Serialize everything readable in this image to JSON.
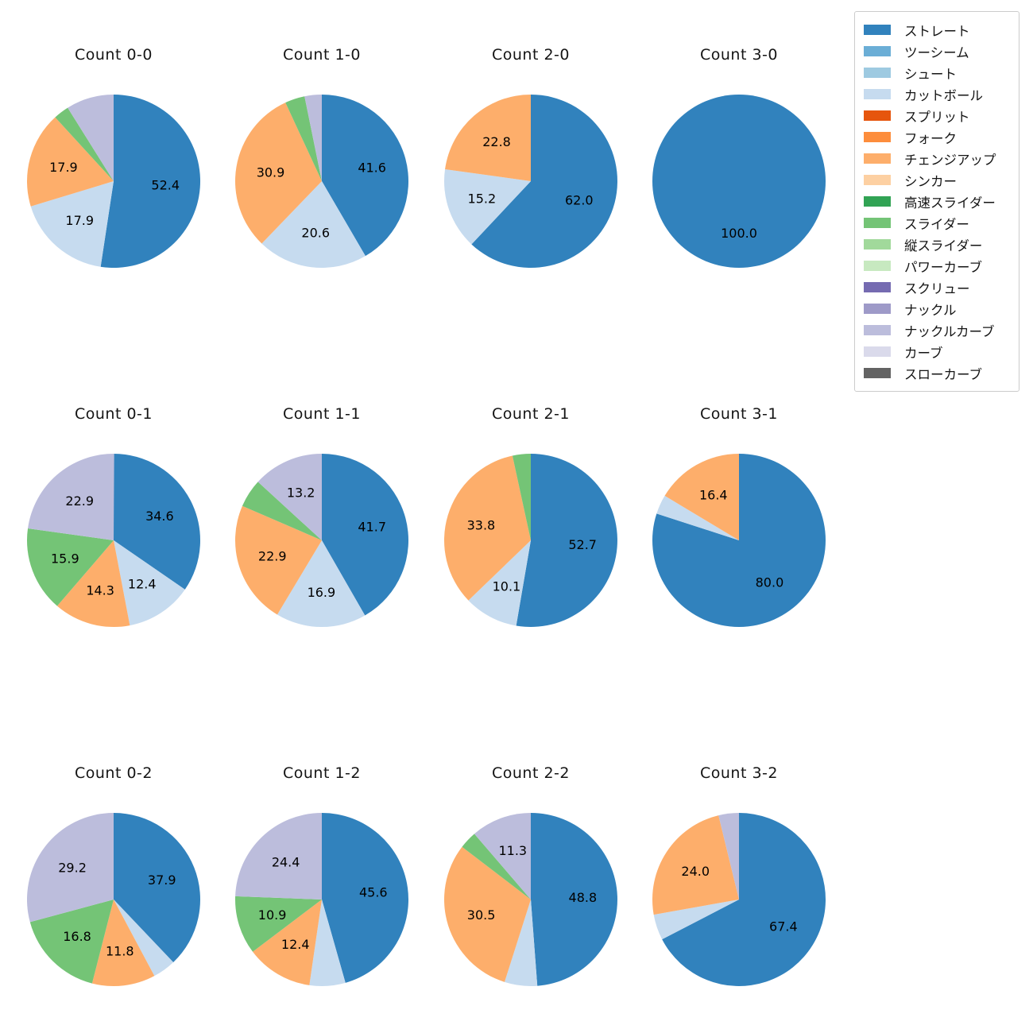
{
  "legend": {
    "items": [
      {
        "label": "ストレート",
        "color": "#3182bd"
      },
      {
        "label": "ツーシーム",
        "color": "#6baed6"
      },
      {
        "label": "シュート",
        "color": "#9ecae1"
      },
      {
        "label": "カットボール",
        "color": "#c6dbef"
      },
      {
        "label": "スプリット",
        "color": "#e6550d"
      },
      {
        "label": "フォーク",
        "color": "#fd8d3c"
      },
      {
        "label": "チェンジアップ",
        "color": "#fdae6b"
      },
      {
        "label": "シンカー",
        "color": "#fdd0a2"
      },
      {
        "label": "高速スライダー",
        "color": "#31a354"
      },
      {
        "label": "スライダー",
        "color": "#74c476"
      },
      {
        "label": "縦スライダー",
        "color": "#a1d99b"
      },
      {
        "label": "パワーカーブ",
        "color": "#c7e9c0"
      },
      {
        "label": "スクリュー",
        "color": "#756bb1"
      },
      {
        "label": "ナックル",
        "color": "#9e9ac8"
      },
      {
        "label": "ナックルカーブ",
        "color": "#bcbddc"
      },
      {
        "label": "カーブ",
        "color": "#dadaeb"
      },
      {
        "label": "スローカーブ",
        "color": "#636363"
      }
    ]
  },
  "chart_data": [
    {
      "type": "pie",
      "title": "Count 0-0",
      "start_angle": 90,
      "direction": "clockwise",
      "slices": [
        {
          "name": "ストレート",
          "value": 52.4,
          "pct_label": "52.4"
        },
        {
          "name": "カットボール",
          "value": 17.9,
          "pct_label": "17.9"
        },
        {
          "name": "チェンジアップ",
          "value": 17.9,
          "pct_label": "17.9"
        },
        {
          "name": "スライダー",
          "value": 2.9,
          "pct_label": ""
        },
        {
          "name": "ナックルカーブ",
          "value": 8.9,
          "pct_label": ""
        }
      ]
    },
    {
      "type": "pie",
      "title": "Count 1-0",
      "start_angle": 90,
      "direction": "clockwise",
      "slices": [
        {
          "name": "ストレート",
          "value": 41.6,
          "pct_label": "41.6"
        },
        {
          "name": "カットボール",
          "value": 20.6,
          "pct_label": "20.6"
        },
        {
          "name": "チェンジアップ",
          "value": 30.9,
          "pct_label": "30.9"
        },
        {
          "name": "スライダー",
          "value": 3.7,
          "pct_label": ""
        },
        {
          "name": "ナックルカーブ",
          "value": 3.2,
          "pct_label": ""
        }
      ]
    },
    {
      "type": "pie",
      "title": "Count 2-0",
      "start_angle": 90,
      "direction": "clockwise",
      "slices": [
        {
          "name": "ストレート",
          "value": 62.0,
          "pct_label": "62.0"
        },
        {
          "name": "カットボール",
          "value": 15.2,
          "pct_label": "15.2"
        },
        {
          "name": "チェンジアップ",
          "value": 22.8,
          "pct_label": "22.8"
        }
      ]
    },
    {
      "type": "pie",
      "title": "Count 3-0",
      "start_angle": 90,
      "direction": "clockwise",
      "slices": [
        {
          "name": "ストレート",
          "value": 100.0,
          "pct_label": "100.0"
        }
      ]
    },
    {
      "type": "pie",
      "title": "Count 0-1",
      "start_angle": 90,
      "direction": "clockwise",
      "slices": [
        {
          "name": "ストレート",
          "value": 34.6,
          "pct_label": "34.6"
        },
        {
          "name": "カットボール",
          "value": 12.4,
          "pct_label": "12.4"
        },
        {
          "name": "チェンジアップ",
          "value": 14.3,
          "pct_label": "14.3"
        },
        {
          "name": "スライダー",
          "value": 15.9,
          "pct_label": "15.9"
        },
        {
          "name": "ナックルカーブ",
          "value": 22.9,
          "pct_label": "22.9"
        }
      ]
    },
    {
      "type": "pie",
      "title": "Count 1-1",
      "start_angle": 90,
      "direction": "clockwise",
      "slices": [
        {
          "name": "ストレート",
          "value": 41.7,
          "pct_label": "41.7"
        },
        {
          "name": "カットボール",
          "value": 16.9,
          "pct_label": "16.9"
        },
        {
          "name": "チェンジアップ",
          "value": 22.9,
          "pct_label": "22.9"
        },
        {
          "name": "スライダー",
          "value": 5.3,
          "pct_label": ""
        },
        {
          "name": "ナックルカーブ",
          "value": 13.2,
          "pct_label": "13.2"
        }
      ]
    },
    {
      "type": "pie",
      "title": "Count 2-1",
      "start_angle": 90,
      "direction": "clockwise",
      "slices": [
        {
          "name": "ストレート",
          "value": 52.7,
          "pct_label": "52.7"
        },
        {
          "name": "カットボール",
          "value": 10.1,
          "pct_label": "10.1"
        },
        {
          "name": "チェンジアップ",
          "value": 33.8,
          "pct_label": "33.8"
        },
        {
          "name": "スライダー",
          "value": 3.4,
          "pct_label": ""
        }
      ]
    },
    {
      "type": "pie",
      "title": "Count 3-1",
      "start_angle": 90,
      "direction": "clockwise",
      "slices": [
        {
          "name": "ストレート",
          "value": 80.0,
          "pct_label": "80.0"
        },
        {
          "name": "カットボール",
          "value": 3.6,
          "pct_label": ""
        },
        {
          "name": "チェンジアップ",
          "value": 16.4,
          "pct_label": "16.4"
        }
      ]
    },
    {
      "type": "pie",
      "title": "Count 0-2",
      "start_angle": 90,
      "direction": "clockwise",
      "slices": [
        {
          "name": "ストレート",
          "value": 37.9,
          "pct_label": "37.9"
        },
        {
          "name": "カットボール",
          "value": 4.3,
          "pct_label": ""
        },
        {
          "name": "チェンジアップ",
          "value": 11.8,
          "pct_label": "11.8"
        },
        {
          "name": "スライダー",
          "value": 16.8,
          "pct_label": "16.8"
        },
        {
          "name": "ナックルカーブ",
          "value": 29.2,
          "pct_label": "29.2"
        }
      ]
    },
    {
      "type": "pie",
      "title": "Count 1-2",
      "start_angle": 90,
      "direction": "clockwise",
      "slices": [
        {
          "name": "ストレート",
          "value": 45.6,
          "pct_label": "45.6"
        },
        {
          "name": "カットボール",
          "value": 6.7,
          "pct_label": ""
        },
        {
          "name": "チェンジアップ",
          "value": 12.4,
          "pct_label": "12.4"
        },
        {
          "name": "スライダー",
          "value": 10.9,
          "pct_label": "10.9"
        },
        {
          "name": "ナックルカーブ",
          "value": 24.4,
          "pct_label": "24.4"
        }
      ]
    },
    {
      "type": "pie",
      "title": "Count 2-2",
      "start_angle": 90,
      "direction": "clockwise",
      "slices": [
        {
          "name": "ストレート",
          "value": 48.8,
          "pct_label": "48.8"
        },
        {
          "name": "カットボール",
          "value": 6.1,
          "pct_label": ""
        },
        {
          "name": "チェンジアップ",
          "value": 30.5,
          "pct_label": "30.5"
        },
        {
          "name": "スライダー",
          "value": 3.3,
          "pct_label": ""
        },
        {
          "name": "ナックルカーブ",
          "value": 11.3,
          "pct_label": "11.3"
        }
      ]
    },
    {
      "type": "pie",
      "title": "Count 3-2",
      "start_angle": 90,
      "direction": "clockwise",
      "slices": [
        {
          "name": "ストレート",
          "value": 67.4,
          "pct_label": "67.4"
        },
        {
          "name": "カットボール",
          "value": 4.8,
          "pct_label": ""
        },
        {
          "name": "チェンジアップ",
          "value": 24.0,
          "pct_label": "24.0"
        },
        {
          "name": "ナックルカーブ",
          "value": 3.8,
          "pct_label": ""
        }
      ]
    }
  ]
}
